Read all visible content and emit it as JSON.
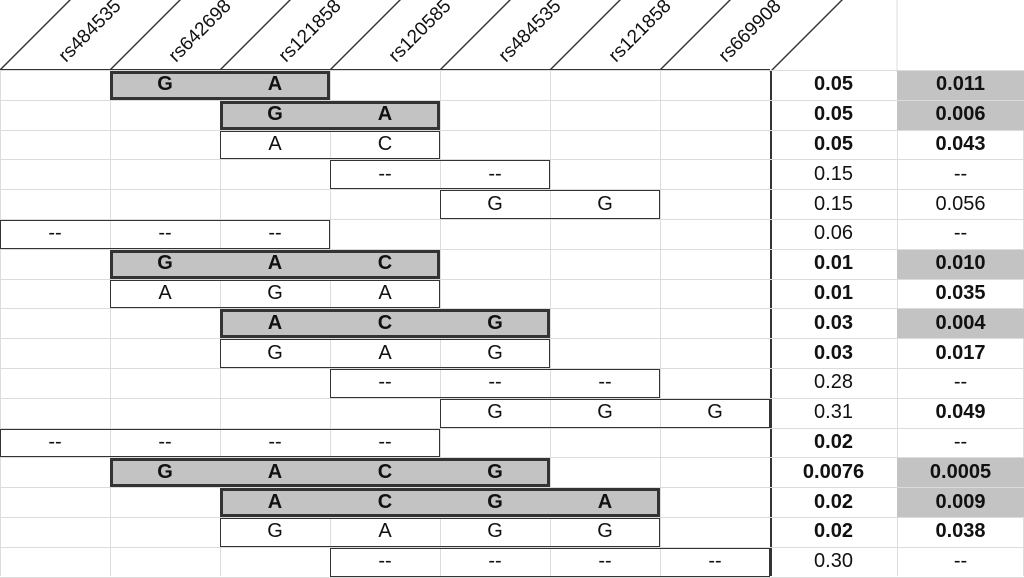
{
  "header": {
    "snp_labels": [
      "rs484535",
      "rs642698",
      "rs121858",
      "rs120585",
      "rs484535",
      "rs121858",
      "rs669908"
    ]
  },
  "rows": [
    {
      "start": 1,
      "alleles": [
        "G",
        "A"
      ],
      "p1": "0.05",
      "p2": "0.011",
      "boxed": true,
      "bold1": true,
      "bold2": true,
      "hl": true
    },
    {
      "start": 2,
      "alleles": [
        "G",
        "A"
      ],
      "p1": "0.05",
      "p2": "0.006",
      "boxed": true,
      "bold1": true,
      "bold2": true,
      "hl": true
    },
    {
      "start": 2,
      "alleles": [
        "A",
        "C"
      ],
      "p1": "0.05",
      "p2": "0.043",
      "boxed": false,
      "bold1": true,
      "bold2": true,
      "hl": false
    },
    {
      "start": 3,
      "alleles": [
        "--",
        "--"
      ],
      "p1": "0.15",
      "p2": "--",
      "boxed": false,
      "bold1": false,
      "bold2": false,
      "hl": false
    },
    {
      "start": 4,
      "alleles": [
        "G",
        "G"
      ],
      "p1": "0.15",
      "p2": "0.056",
      "boxed": false,
      "bold1": false,
      "bold2": false,
      "hl": false
    },
    {
      "start": 0,
      "alleles": [
        "--",
        "--",
        "--"
      ],
      "p1": "0.06",
      "p2": "--",
      "boxed": false,
      "bold1": false,
      "bold2": false,
      "hl": false
    },
    {
      "start": 1,
      "alleles": [
        "G",
        "A",
        "C"
      ],
      "p1": "0.01",
      "p2": "0.010",
      "boxed": true,
      "bold1": true,
      "bold2": true,
      "hl": true
    },
    {
      "start": 1,
      "alleles": [
        "A",
        "G",
        "A"
      ],
      "p1": "0.01",
      "p2": "0.035",
      "boxed": false,
      "bold1": true,
      "bold2": true,
      "hl": false
    },
    {
      "start": 2,
      "alleles": [
        "A",
        "C",
        "G"
      ],
      "p1": "0.03",
      "p2": "0.004",
      "boxed": true,
      "bold1": true,
      "bold2": true,
      "hl": true
    },
    {
      "start": 2,
      "alleles": [
        "G",
        "A",
        "G"
      ],
      "p1": "0.03",
      "p2": "0.017",
      "boxed": false,
      "bold1": true,
      "bold2": true,
      "hl": false
    },
    {
      "start": 3,
      "alleles": [
        "--",
        "--",
        "--"
      ],
      "p1": "0.28",
      "p2": "--",
      "boxed": false,
      "bold1": false,
      "bold2": false,
      "hl": false
    },
    {
      "start": 4,
      "alleles": [
        "G",
        "G",
        "G"
      ],
      "p1": "0.31",
      "p2": "0.049",
      "boxed": false,
      "bold1": false,
      "bold2": true,
      "hl": false
    },
    {
      "start": 0,
      "alleles": [
        "--",
        "--",
        "--",
        "--"
      ],
      "p1": "0.02",
      "p2": "--",
      "boxed": false,
      "bold1": true,
      "bold2": false,
      "hl": false
    },
    {
      "start": 1,
      "alleles": [
        "G",
        "A",
        "C",
        "G"
      ],
      "p1": "0.0076",
      "p2": "0.0005",
      "boxed": true,
      "bold1": true,
      "bold2": true,
      "hl": true
    },
    {
      "start": 2,
      "alleles": [
        "A",
        "C",
        "G",
        "A"
      ],
      "p1": "0.02",
      "p2": "0.009",
      "boxed": true,
      "bold1": true,
      "bold2": true,
      "hl": true
    },
    {
      "start": 2,
      "alleles": [
        "G",
        "A",
        "G",
        "G"
      ],
      "p1": "0.02",
      "p2": "0.038",
      "boxed": false,
      "bold1": true,
      "bold2": true,
      "hl": false
    },
    {
      "start": 3,
      "alleles": [
        "--",
        "--",
        "--",
        "--"
      ],
      "p1": "0.30",
      "p2": "--",
      "boxed": false,
      "bold1": false,
      "bold2": false,
      "hl": false
    }
  ]
}
